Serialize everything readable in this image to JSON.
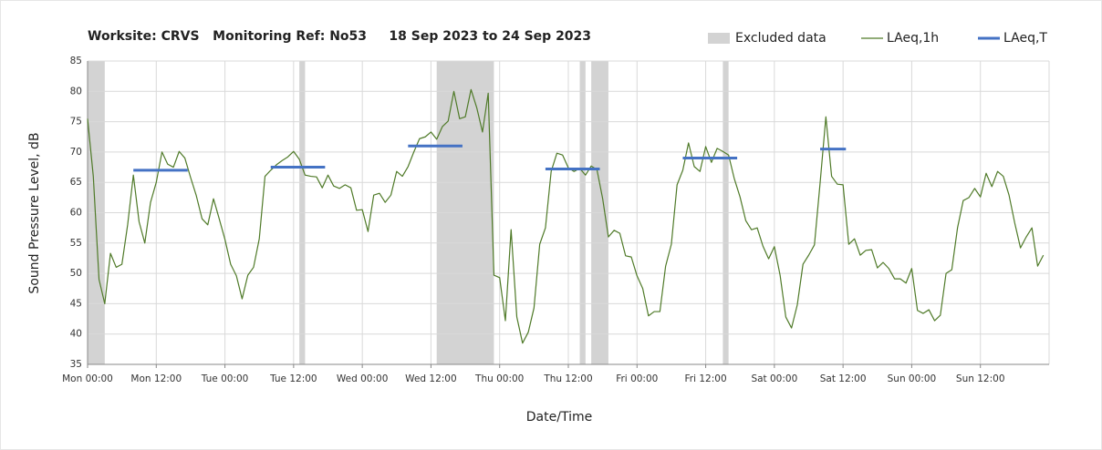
{
  "chart_data": {
    "type": "line",
    "title": "Worksite: CRVS   Monitoring Ref: No53     18 Sep 2023 to 24 Sep 2023",
    "x_label": "Date/Time",
    "y_label": "Sound Pressure Level, dB",
    "xlim": [
      0,
      168
    ],
    "ylim": [
      35,
      85
    ],
    "xticks": [
      {
        "value": 0,
        "label": "Mon 00:00"
      },
      {
        "value": 12,
        "label": "Mon 12:00"
      },
      {
        "value": 24,
        "label": "Tue 00:00"
      },
      {
        "value": 36,
        "label": "Tue 12:00"
      },
      {
        "value": 48,
        "label": "Wed 00:00"
      },
      {
        "value": 60,
        "label": "Wed 12:00"
      },
      {
        "value": 72,
        "label": "Thu 00:00"
      },
      {
        "value": 84,
        "label": "Thu 12:00"
      },
      {
        "value": 96,
        "label": "Fri 00:00"
      },
      {
        "value": 108,
        "label": "Fri 12:00"
      },
      {
        "value": 120,
        "label": "Sat 00:00"
      },
      {
        "value": 132,
        "label": "Sat 12:00"
      },
      {
        "value": 144,
        "label": "Sun 00:00"
      },
      {
        "value": 156,
        "label": "Sun 12:00"
      }
    ],
    "yticks": [
      35,
      40,
      45,
      50,
      55,
      60,
      65,
      70,
      75,
      80,
      85
    ],
    "grid": true,
    "excluded": {
      "name": "Excluded data",
      "color": "#d3d3d3",
      "ranges": [
        [
          0,
          3
        ],
        [
          37,
          38
        ],
        [
          61,
          71
        ],
        [
          86,
          87
        ],
        [
          88,
          91
        ],
        [
          111,
          112
        ]
      ]
    },
    "x": [
      0,
      1,
      2,
      3,
      4,
      5,
      6,
      7,
      8,
      9,
      10,
      11,
      12,
      13,
      14,
      15,
      16,
      17,
      18,
      19,
      20,
      21,
      22,
      23,
      24,
      25,
      26,
      27,
      28,
      29,
      30,
      31,
      32,
      33,
      34,
      35,
      36,
      37,
      38,
      39,
      40,
      41,
      42,
      43,
      44,
      45,
      46,
      47,
      48,
      49,
      50,
      51,
      52,
      53,
      54,
      55,
      56,
      57,
      58,
      59,
      60,
      61,
      62,
      63,
      64,
      65,
      66,
      67,
      68,
      69,
      70,
      71,
      72,
      73,
      74,
      75,
      76,
      77,
      78,
      79,
      80,
      81,
      82,
      83,
      84,
      85,
      86,
      87,
      88,
      89,
      90,
      91,
      92,
      93,
      94,
      95,
      96,
      97,
      98,
      99,
      100,
      101,
      102,
      103,
      104,
      105,
      106,
      107,
      108,
      109,
      110,
      111,
      112,
      113,
      114,
      115,
      116,
      117,
      118,
      119,
      120,
      121,
      122,
      123,
      124,
      125,
      126,
      127,
      128,
      129,
      130,
      131,
      132,
      133,
      134,
      135,
      136,
      137,
      138,
      139,
      140,
      141,
      142,
      143,
      144,
      145,
      146,
      147,
      148,
      149,
      150,
      151,
      152,
      153,
      154,
      155,
      156,
      157,
      158,
      159,
      160,
      161,
      162,
      163,
      164,
      165,
      166,
      167
    ],
    "series": [
      {
        "name": "LAeq,1h",
        "color": "#4f7a28",
        "values": [
          75.5,
          66,
          49,
          45,
          53.3,
          51,
          51.5,
          58,
          66.2,
          58.5,
          55,
          61.7,
          65,
          70,
          68,
          67.5,
          70.1,
          69,
          65.8,
          62.8,
          59,
          58,
          62.3,
          59,
          55.6,
          51.5,
          49.6,
          45.8,
          49.7,
          51,
          55.7,
          66,
          67,
          67.9,
          68.6,
          69.2,
          70.1,
          68.8,
          66.2,
          66,
          65.9,
          64.1,
          66.2,
          64.4,
          64,
          64.6,
          64.1,
          60.4,
          60.5,
          56.9,
          62.9,
          63.2,
          61.7,
          62.9,
          66.8,
          66,
          67.6,
          70,
          72.2,
          72.5,
          73.3,
          72.1,
          74.2,
          75.1,
          80,
          75.5,
          75.8,
          80.3,
          77.3,
          73.3,
          79.7,
          49.7,
          49.3,
          42.2,
          57.2,
          42.8,
          38.5,
          40.3,
          44.3,
          54.8,
          57.5,
          66.8,
          69.8,
          69.5,
          67.4,
          66.8,
          67.3,
          66.2,
          67.7,
          67.1,
          62.3,
          56,
          57.1,
          56.6,
          52.9,
          52.7,
          49.6,
          47.5,
          43,
          43.7,
          43.7,
          51.2,
          54.8,
          64.6,
          67,
          71.5,
          67.6,
          66.8,
          70.9,
          68.3,
          70.6,
          70.1,
          69.5,
          65.6,
          62.6,
          58.7,
          57.2,
          57.5,
          54.5,
          52.4,
          54.4,
          49.7,
          42.8,
          41,
          44.8,
          51.5,
          53,
          54.7,
          65,
          75.8,
          66,
          64.7,
          64.6,
          54.8,
          55.7,
          53,
          53.8,
          53.9,
          50.9,
          51.8,
          50.8,
          49.1,
          49.1,
          48.4,
          50.8,
          43.9,
          43.4,
          44,
          42.2,
          43.1,
          50,
          50.6,
          57.5,
          62,
          62.5,
          64,
          62.6,
          66.5,
          64.3,
          66.8,
          66,
          62.9,
          58.3,
          54.2,
          56,
          57.5,
          51.2,
          53
        ]
      }
    ],
    "laeq_t": {
      "name": "LAeq,T",
      "color": "#4472c4",
      "x_start": [
        8,
        32,
        56,
        80,
        104,
        128
      ],
      "x_end": [
        17.5,
        41.5,
        65.5,
        89.5,
        113.5,
        132.5
      ],
      "values": [
        67,
        67.5,
        71,
        67.2,
        69,
        70.5
      ]
    }
  }
}
